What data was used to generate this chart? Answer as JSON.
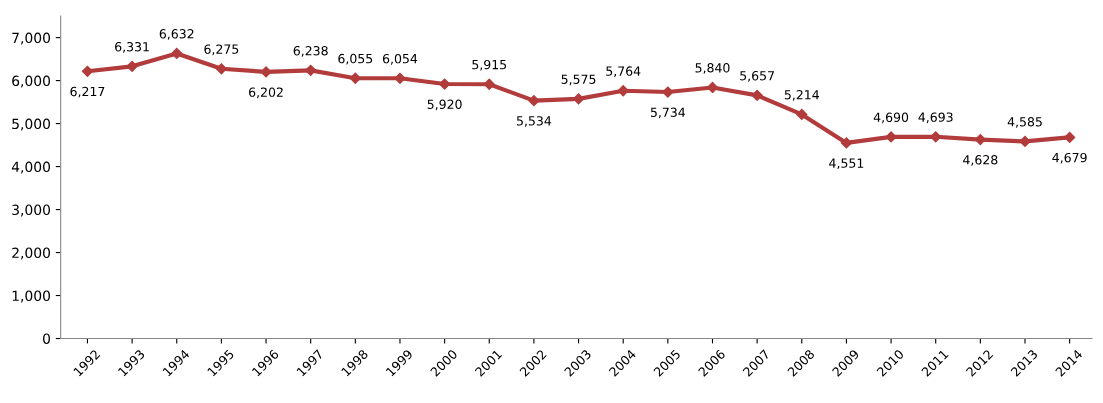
{
  "chart_data": {
    "type": "line",
    "categories": [
      "1992",
      "1993",
      "1994",
      "1995",
      "1996",
      "1997",
      "1998",
      "1999",
      "2000",
      "2001",
      "2002",
      "2003",
      "2004",
      "2005",
      "2006",
      "2007",
      "2008",
      "2009",
      "2010",
      "2011",
      "2012",
      "2013",
      "2014"
    ],
    "series": [
      {
        "color": "#b23b3b",
        "values": [
          6217,
          6331,
          6632,
          6275,
          6202,
          6238,
          6055,
          6054,
          5920,
          5915,
          5534,
          5575,
          5764,
          5734,
          5840,
          5657,
          5214,
          4551,
          4690,
          4693,
          4628,
          4585,
          4679
        ]
      }
    ],
    "ylim": [
      0,
      7500
    ],
    "yticks": [
      {
        "value": 0,
        "label": "0"
      },
      {
        "value": 1000,
        "label": "1,000"
      },
      {
        "value": 2000,
        "label": "2,000"
      },
      {
        "value": 3000,
        "label": "3,000"
      },
      {
        "value": 4000,
        "label": "4,000"
      },
      {
        "value": 5000,
        "label": "5,000"
      },
      {
        "value": 6000,
        "label": "6,000"
      },
      {
        "value": 7000,
        "label": "7,000"
      }
    ],
    "value_labels": [
      "6,217",
      "6,331",
      "6,632",
      "6,275",
      "6,202",
      "6,238",
      "6,055",
      "6,054",
      "5,920",
      "5,915",
      "5,534",
      "5,575",
      "5,764",
      "5,734",
      "5,840",
      "5,657",
      "5,214",
      "4,551",
      "4,690",
      "4,693",
      "4,628",
      "4,585",
      "4,679"
    ],
    "marker": "diamond",
    "line_style": "solid",
    "grid": false,
    "legend": false
  }
}
